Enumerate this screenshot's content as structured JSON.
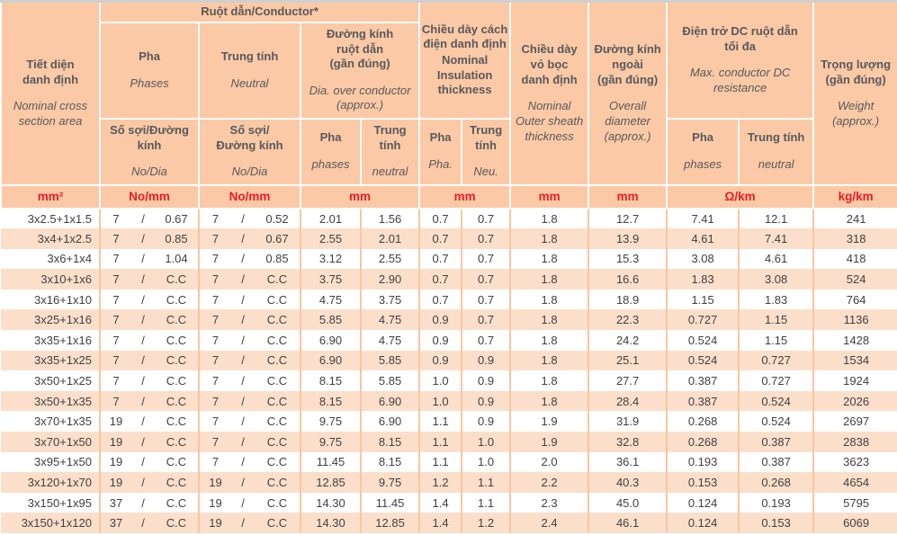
{
  "colors": {
    "header_bg": "#fbc9a6",
    "row_alt_bg": "#fcdfca",
    "header_grid": "#ffffff",
    "data_grid": "#f9c6a2",
    "header_text": "#58595b",
    "unit_text": "#ed1c24",
    "data_text": "#414042",
    "page_edge": "#cfd0d1"
  },
  "slash": "/",
  "header": {
    "section": {
      "vn": "Tiết diện\ndanh định",
      "en": "Nominal cross\nsection area"
    },
    "conductor_group": {
      "vn": "Ruột dẫn/Conductor*"
    },
    "phase": {
      "vn": "Pha",
      "en": "Phases"
    },
    "neutral": {
      "vn": "Trung tính",
      "en": "Neutral"
    },
    "phase_strands": {
      "vn": "Số sợi/Đường\nkính",
      "en": "No/Dia"
    },
    "neutral_strands": {
      "vn": "Số sợi/\nĐường kính",
      "en": "No/Dia"
    },
    "conductor_dia": {
      "vn": "Đường kính\nruột dẫn\n(gần đúng)",
      "en": "Dia. over conductor\n(approx.)"
    },
    "dia_phase": {
      "vn": "Pha",
      "en": "phases"
    },
    "dia_neutral": {
      "vn": "Trung\ntính",
      "en": "neutral"
    },
    "insulation": {
      "vn": "Chiều dày cách\nđiện danh định",
      "en": "Nominal\nInsulation\nthickness"
    },
    "ins_phase": {
      "vn": "Pha",
      "en": "Pha."
    },
    "ins_neutral": {
      "vn": "Trung\ntính",
      "en": "Neu."
    },
    "sheath": {
      "vn": "Chiều dày\nvỏ bọc\ndanh định",
      "en": "Nominal\nOuter sheath\nthickness"
    },
    "overall": {
      "vn": "Đường kính\nngoài\n(gần đúng)",
      "en": "Overall\ndiameter\n(approx.)"
    },
    "resistance": {
      "vn": "Điện trở DC ruột dẫn\ntối đa",
      "en": "Max. conductor DC\nresistance"
    },
    "res_phase": {
      "vn": "Pha",
      "en": "phases"
    },
    "res_neutral": {
      "vn": "Trung tính",
      "en": "neutral"
    },
    "weight": {
      "vn": "Trọng lượng\n(gần đúng)",
      "en": "Weight\n(approx.)"
    }
  },
  "units": {
    "section": "mm²",
    "phase_strands": "No/mm",
    "neutral_strands": "No/mm",
    "conductor_dia": "mm",
    "insulation": "mm",
    "sheath": "mm",
    "overall": "mm",
    "resistance": "Ω/km",
    "weight": "kg/km"
  },
  "rows": [
    [
      "3x2.5+1x1.5",
      "7",
      "0.67",
      "7",
      "0.52",
      "2.01",
      "1.56",
      "0.7",
      "0.7",
      "1.8",
      "12.7",
      "7.41",
      "12.1",
      "241"
    ],
    [
      "3x4+1x2.5",
      "7",
      "0.85",
      "7",
      "0.67",
      "2.55",
      "2.01",
      "0.7",
      "0.7",
      "1.8",
      "13.9",
      "4.61",
      "7.41",
      "318"
    ],
    [
      "3x6+1x4",
      "7",
      "1.04",
      "7",
      "0.85",
      "3.12",
      "2.55",
      "0.7",
      "0.7",
      "1.8",
      "15.3",
      "3.08",
      "4.61",
      "418"
    ],
    [
      "3x10+1x6",
      "7",
      "C.C",
      "7",
      "C.C",
      "3.75",
      "2.90",
      "0.7",
      "0.7",
      "1.8",
      "16.6",
      "1.83",
      "3.08",
      "524"
    ],
    [
      "3x16+1x10",
      "7",
      "C.C",
      "7",
      "C.C",
      "4.75",
      "3.75",
      "0.7",
      "0.7",
      "1.8",
      "18.9",
      "1.15",
      "1.83",
      "764"
    ],
    [
      "3x25+1x16",
      "7",
      "C.C",
      "7",
      "C.C",
      "5.85",
      "4.75",
      "0.9",
      "0.7",
      "1.8",
      "22.3",
      "0.727",
      "1.15",
      "1136"
    ],
    [
      "3x35+1x16",
      "7",
      "C.C",
      "7",
      "C.C",
      "6.90",
      "4.75",
      "0.9",
      "0.7",
      "1.8",
      "24.2",
      "0.524",
      "1.15",
      "1428"
    ],
    [
      "3x35+1x25",
      "7",
      "C.C",
      "7",
      "C.C",
      "6.90",
      "5.85",
      "0.9",
      "0.9",
      "1.8",
      "25.1",
      "0.524",
      "0.727",
      "1534"
    ],
    [
      "3x50+1x25",
      "7",
      "C.C",
      "7",
      "C.C",
      "8.15",
      "5.85",
      "1.0",
      "0.9",
      "1.8",
      "27.7",
      "0.387",
      "0.727",
      "1924"
    ],
    [
      "3x50+1x35",
      "7",
      "C.C",
      "7",
      "C.C",
      "8.15",
      "6.90",
      "1.0",
      "0.9",
      "1.8",
      "28.4",
      "0.387",
      "0.524",
      "2026"
    ],
    [
      "3x70+1x35",
      "19",
      "C.C",
      "7",
      "C.C",
      "9.75",
      "6.90",
      "1.1",
      "0.9",
      "1.9",
      "31.9",
      "0.268",
      "0.524",
      "2697"
    ],
    [
      "3x70+1x50",
      "19",
      "C.C",
      "7",
      "C.C",
      "9.75",
      "8.15",
      "1.1",
      "1.0",
      "1.9",
      "32.8",
      "0.268",
      "0.387",
      "2838"
    ],
    [
      "3x95+1x50",
      "19",
      "C.C",
      "7",
      "C.C",
      "11.45",
      "8.15",
      "1.1",
      "1.0",
      "2.0",
      "36.1",
      "0.193",
      "0.387",
      "3623"
    ],
    [
      "3x120+1x70",
      "19",
      "C.C",
      "19",
      "C.C",
      "12.85",
      "9.75",
      "1.2",
      "1.1",
      "2.2",
      "40.3",
      "0.153",
      "0.268",
      "4654"
    ],
    [
      "3x150+1x95",
      "37",
      "C.C",
      "19",
      "C.C",
      "14.30",
      "11.45",
      "1.4",
      "1.1",
      "2.3",
      "45.0",
      "0.124",
      "0.193",
      "5795"
    ],
    [
      "3x150+1x120",
      "37",
      "C.C",
      "19",
      "C.C",
      "14.30",
      "12.85",
      "1.4",
      "1.2",
      "2.4",
      "46.1",
      "0.124",
      "0.153",
      "6069"
    ]
  ]
}
